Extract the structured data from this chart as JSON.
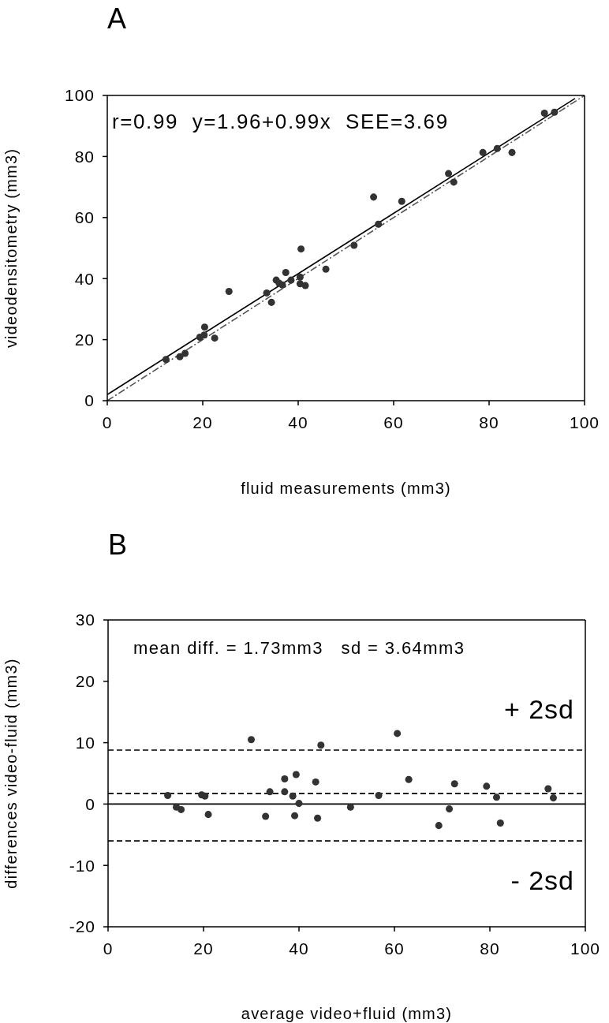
{
  "chart_data": [
    {
      "type": "scatter",
      "title": "A",
      "xlabel": "fluid measurements (mm3)",
      "ylabel": "videodensitometry (mm3)",
      "xlim": [
        0,
        100
      ],
      "ylim": [
        0,
        100
      ],
      "xticks": [
        0,
        20,
        40,
        60,
        80,
        100
      ],
      "yticks": [
        0,
        20,
        40,
        60,
        80,
        100
      ],
      "grid": false,
      "marker": "circle",
      "annotations": [
        "r=0.99  y=1.96+0.99x  SEE=3.69"
      ],
      "series": [
        {
          "color": "#333333",
          "x": [
            12.3,
            15.2,
            16.3,
            19.4,
            20.3,
            20.4,
            22.5,
            25.5,
            33.4,
            34.4,
            35.4,
            36.0,
            36.7,
            37.4,
            38.5,
            40.4,
            40.4,
            40.6,
            41.5,
            45.8,
            51.7,
            55.8,
            56.8,
            61.7,
            71.5,
            72.6,
            78.7,
            81.7,
            84.8,
            91.6,
            93.7
          ],
          "values": [
            13.5,
            14.4,
            15.5,
            20.8,
            21.5,
            24.1,
            20.5,
            35.8,
            35.3,
            32.2,
            39.5,
            38.5,
            37.9,
            42.0,
            39.5,
            40.5,
            38.3,
            49.7,
            37.7,
            43.1,
            50.9,
            66.7,
            57.8,
            65.3,
            74.4,
            71.6,
            81.3,
            82.6,
            81.3,
            94.2,
            94.5
          ]
        },
        {
          "type": "line",
          "color": "#000000",
          "line_style": "solid",
          "marker": "none",
          "x": [
            0,
            98
          ],
          "values": [
            2,
            99
          ]
        },
        {
          "type": "line",
          "color": "#555555",
          "line_style": "dashed",
          "marker": "none",
          "x": [
            0,
            100
          ],
          "values": [
            0,
            100
          ]
        }
      ]
    },
    {
      "type": "scatter",
      "title": "B",
      "xlabel": "average video+fluid (mm3)",
      "ylabel": "differences video-fluid (mm3)",
      "xlim": [
        0,
        100
      ],
      "ylim": [
        -20,
        30
      ],
      "xticks": [
        0,
        20,
        40,
        60,
        80,
        100
      ],
      "yticks": [
        -20,
        -10,
        0,
        10,
        20,
        30
      ],
      "grid": false,
      "marker": "circle",
      "annotations": [
        "mean diff. = 1.73mm3   sd = 3.64mm3"
      ],
      "ref_lines": [
        {
          "axis": "y",
          "value": 0,
          "line_style": "solid",
          "color": "#000000"
        },
        {
          "axis": "y",
          "value": 1.7,
          "line_style": "dashed",
          "color": "#000000"
        },
        {
          "axis": "y",
          "value": 8.8,
          "line_style": "dashed",
          "color": "#000000",
          "label": "+ 2sd"
        },
        {
          "axis": "y",
          "value": -6,
          "line_style": "dashed",
          "color": "#000000",
          "label": "- 2sd"
        }
      ],
      "series": [
        {
          "color": "#333333",
          "x": [
            12.5,
            14.3,
            15.3,
            19.6,
            20.3,
            21,
            30,
            33,
            33.9,
            37,
            37,
            39.4,
            38.7,
            39.1,
            40,
            43.5,
            43.9,
            44.6,
            50.8,
            56.7,
            60.6,
            63,
            69.3,
            71.5,
            72.6,
            79.3,
            81.4,
            82.2,
            92.2,
            93.3
          ],
          "values": [
            1.4,
            -0.5,
            -0.9,
            1.5,
            1.3,
            -1.7,
            10.5,
            -2,
            2,
            4.1,
            2,
            4.8,
            1.3,
            -1.9,
            0.1,
            3.6,
            -2.3,
            9.6,
            -0.5,
            1.4,
            11.5,
            4,
            -3.5,
            -0.8,
            3.3,
            2.9,
            1.1,
            -3.1,
            2.5,
            1
          ]
        }
      ]
    }
  ]
}
